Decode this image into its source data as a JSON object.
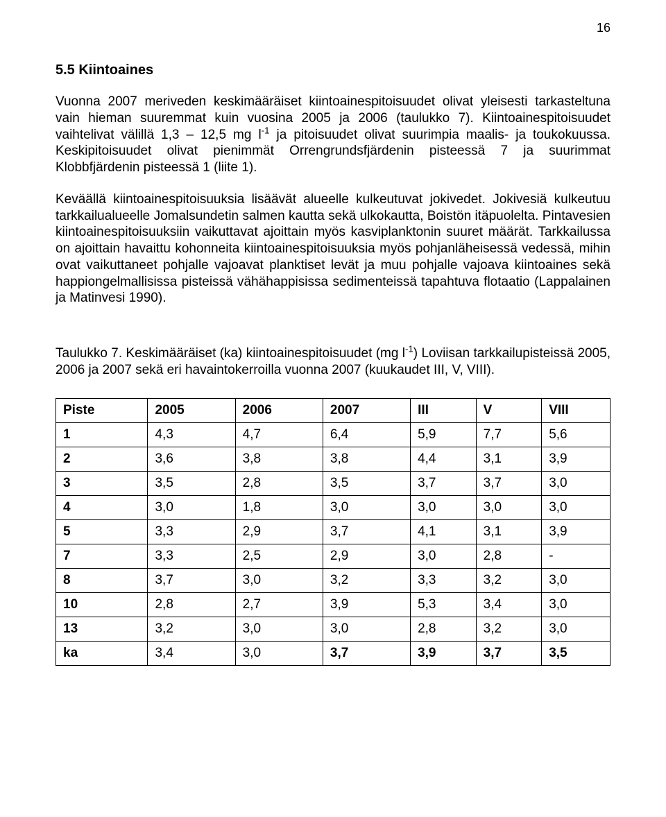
{
  "page_number": "16",
  "section_title": "5.5 Kiintoaines",
  "paragraph_1_html": "Vuonna 2007 meriveden keskimääräiset kiintoainespitoisuudet olivat yleisesti tarkasteltuna vain hieman suuremmat kuin vuosina 2005 ja 2006 (taulukko 7). Kiintoainespitoisuudet vaihtelivat välillä 1,3 – 12,5 mg l<sup>-1</sup> ja pitoisuudet olivat suurimpia maalis- ja toukokuussa. Keskipitoisuudet olivat pienimmät Orrengrundsfjärdenin pisteessä 7 ja suurimmat Klobbfjärdenin pisteessä 1 (liite 1).",
  "paragraph_2_html": "Keväällä kiintoainespitoisuuksia lisäävät alueelle kulkeutuvat jokivedet. Jokivesiä kulkeutuu tarkkailualueelle Jomalsundetin salmen kautta sekä ulkokautta, Boistön itäpuolelta. Pintavesien kiintoainespitoisuuksiin vaikuttavat ajoittain myös kasviplanktonin suuret määrät. Tarkkailussa on ajoittain havaittu kohonneita kiintoainespitoisuuksia myös pohjanläheisessä vedessä, mihin ovat vaikuttaneet pohjalle vajoavat planktiset levät ja muu pohjalle vajoava kiintoaines sekä happiongelmallisissa pisteissä vähähappisissa sedimenteissä tapahtuva flotaatio (Lappalainen ja Matinvesi 1990).",
  "caption_html": "Taulukko 7. Keskimääräiset (ka) kiintoainespitoisuudet (mg l<sup>-1</sup>) Loviisan tarkkailupisteissä 2005, 2006 ja 2007 sekä eri havaintokerroilla vuonna 2007 (kuukaudet III, V, VIII).",
  "table": {
    "type": "table",
    "border_color": "#000000",
    "header_fontweight": "bold",
    "rowlabel_fontweight": "bold",
    "fontsize_pt": 14,
    "columns": [
      "Piste",
      "2005",
      "2006",
      "2007",
      "III",
      "V",
      "VIII"
    ],
    "rows": [
      {
        "label": "1",
        "cells": [
          "4,3",
          "4,7",
          "6,4",
          "5,9",
          "7,7",
          "5,6"
        ],
        "bold_cells": []
      },
      {
        "label": "2",
        "cells": [
          "3,6",
          "3,8",
          "3,8",
          "4,4",
          "3,1",
          "3,9"
        ],
        "bold_cells": []
      },
      {
        "label": "3",
        "cells": [
          "3,5",
          "2,8",
          "3,5",
          "3,7",
          "3,7",
          "3,0"
        ],
        "bold_cells": []
      },
      {
        "label": "4",
        "cells": [
          "3,0",
          "1,8",
          "3,0",
          "3,0",
          "3,0",
          "3,0"
        ],
        "bold_cells": []
      },
      {
        "label": "5",
        "cells": [
          "3,3",
          "2,9",
          "3,7",
          "4,1",
          "3,1",
          "3,9"
        ],
        "bold_cells": []
      },
      {
        "label": "7",
        "cells": [
          "3,3",
          "2,5",
          "2,9",
          "3,0",
          "2,8",
          "-"
        ],
        "bold_cells": []
      },
      {
        "label": "8",
        "cells": [
          "3,7",
          "3,0",
          "3,2",
          "3,3",
          "3,2",
          "3,0"
        ],
        "bold_cells": []
      },
      {
        "label": "10",
        "cells": [
          "2,8",
          "2,7",
          "3,9",
          "5,3",
          "3,4",
          "3,0"
        ],
        "bold_cells": []
      },
      {
        "label": "13",
        "cells": [
          "3,2",
          "3,0",
          "3,0",
          "2,8",
          "3,2",
          "3,0"
        ],
        "bold_cells": []
      },
      {
        "label": "ka",
        "cells": [
          "3,4",
          "3,0",
          "3,7",
          "3,9",
          "3,7",
          "3,5"
        ],
        "bold_cells": [
          2,
          3,
          4,
          5
        ]
      }
    ]
  }
}
